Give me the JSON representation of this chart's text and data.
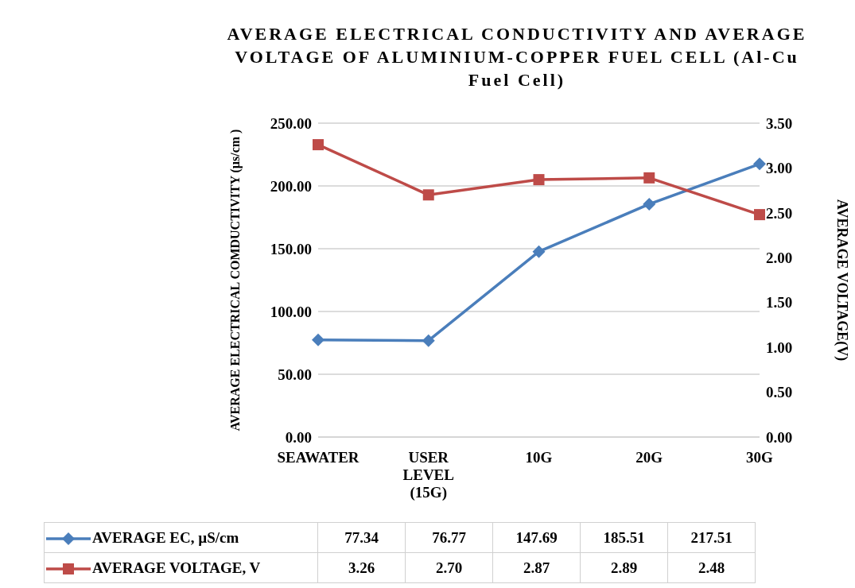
{
  "chart_data": {
    "type": "line",
    "title": "AVERAGE ELECTRICAL CONDUCTIVITY AND AVERAGE VOLTAGE OF ALUMINIUM-COPPER FUEL CELL (Al-Cu Fuel Cell)",
    "ylabel": "AVERAGE ELECTRICAL COMDUCTIVITY (µs/cm )",
    "y2label": "AVERAGE VOLTAGE(V)",
    "categories": [
      "SEAWATER",
      "USER LEVEL (15G)",
      "10G",
      "20G",
      "30G"
    ],
    "series": [
      {
        "name": "AVERAGE EC, µS/cm",
        "color": "#4a7ebb",
        "marker": "diamond",
        "values": [
          77.34,
          76.77,
          147.69,
          185.51,
          217.51
        ],
        "value_labels": [
          "77.34",
          "76.77",
          "147.69",
          "185.51",
          "217.51"
        ]
      },
      {
        "name": "AVERAGE VOLTAGE, V",
        "color": "#be4b48",
        "marker": "square",
        "axis": "y2",
        "values": [
          3.26,
          2.7,
          2.87,
          2.89,
          2.48
        ],
        "value_labels": [
          "3.26",
          "2.70",
          "2.87",
          "2.89",
          "2.48"
        ]
      }
    ],
    "ylim": [
      0,
      250
    ],
    "yticks": [
      {
        "value": 0,
        "label": "0.00"
      },
      {
        "value": 50,
        "label": "50.00"
      },
      {
        "value": 100,
        "label": "100.00"
      },
      {
        "value": 150,
        "label": "150.00"
      },
      {
        "value": 200,
        "label": "200.00"
      },
      {
        "value": 250,
        "label": "250.00"
      }
    ],
    "y2lim": [
      0,
      3.5
    ],
    "y2ticks": [
      {
        "value": 0,
        "label": "0.00"
      },
      {
        "value": 0.5,
        "label": "0.50"
      },
      {
        "value": 1,
        "label": "1.00"
      },
      {
        "value": 1.5,
        "label": "1.50"
      },
      {
        "value": 2,
        "label": "2.00"
      },
      {
        "value": 2.5,
        "label": "2.50"
      },
      {
        "value": 3,
        "label": "3.00"
      },
      {
        "value": 3.5,
        "label": "3.50"
      }
    ],
    "grid": "y",
    "legend": "bottom"
  }
}
